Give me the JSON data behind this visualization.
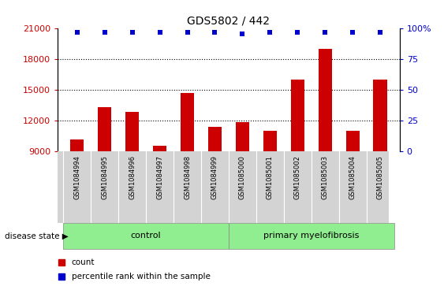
{
  "title": "GDS5802 / 442",
  "samples": [
    "GSM1084994",
    "GSM1084995",
    "GSM1084996",
    "GSM1084997",
    "GSM1084998",
    "GSM1084999",
    "GSM1085000",
    "GSM1085001",
    "GSM1085002",
    "GSM1085003",
    "GSM1085004",
    "GSM1085005"
  ],
  "bar_values": [
    10200,
    13300,
    12900,
    9600,
    14700,
    11400,
    11900,
    11000,
    16000,
    19000,
    11000,
    16000
  ],
  "percentile_values": [
    97,
    97,
    97,
    97,
    97,
    97,
    96,
    97,
    97,
    97,
    97,
    97
  ],
  "bar_color": "#cc0000",
  "dot_color": "#0000cc",
  "ylim_left": [
    9000,
    21000
  ],
  "ylim_right": [
    0,
    100
  ],
  "yticks_left": [
    9000,
    12000,
    15000,
    18000,
    21000
  ],
  "yticks_right": [
    0,
    25,
    50,
    75,
    100
  ],
  "ytick_labels_right": [
    "0",
    "25",
    "50",
    "75",
    "100%"
  ],
  "grid_values": [
    12000,
    15000,
    18000
  ],
  "control_label": "control",
  "disease_label": "primary myelofibrosis",
  "disease_state_label": "disease state",
  "n_control": 6,
  "n_disease": 6,
  "legend_count": "count",
  "legend_percentile": "percentile rank within the sample",
  "bg_color_samples": "#d3d3d3",
  "bg_color_group": "#90ee90",
  "bar_width": 0.5,
  "title_fontsize": 10,
  "tick_fontsize": 8,
  "label_fontsize": 8,
  "sample_fontsize": 6
}
